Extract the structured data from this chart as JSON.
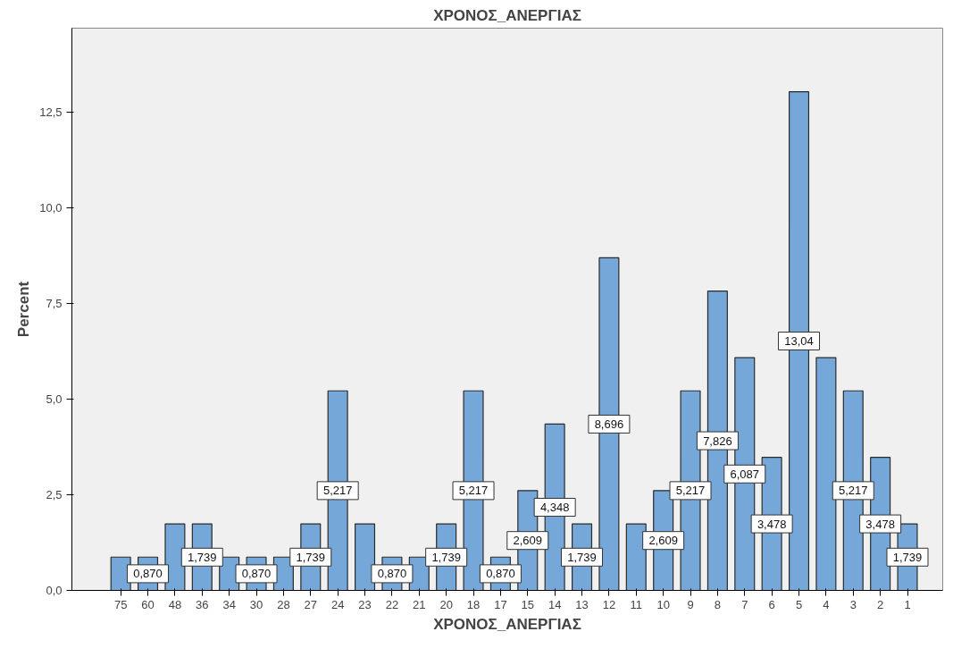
{
  "chart_data": {
    "type": "bar",
    "title": "ΧΡΟΝΟΣ_ΑΝΕΡΓΙΑΣ",
    "xlabel": "ΧΡΟΝΟΣ_ΑΝΕΡΓΙΑΣ",
    "ylabel": "Percent",
    "categories": [
      "75",
      "60",
      "48",
      "36",
      "34",
      "30",
      "28",
      "27",
      "24",
      "23",
      "22",
      "21",
      "20",
      "18",
      "17",
      "15",
      "14",
      "13",
      "12",
      "11",
      "10",
      "9",
      "8",
      "7",
      "6",
      "5",
      "4",
      "3",
      "2",
      "1"
    ],
    "values": [
      0.87,
      0.87,
      1.739,
      1.739,
      0.87,
      0.87,
      0.87,
      1.739,
      5.217,
      1.739,
      0.87,
      0.87,
      1.739,
      5.217,
      0.87,
      2.609,
      4.348,
      1.739,
      8.696,
      1.739,
      2.609,
      5.217,
      7.826,
      6.087,
      3.478,
      13.04,
      6.087,
      5.217,
      3.478,
      1.739
    ],
    "value_labels": [
      null,
      "0,870",
      null,
      "1,739",
      null,
      "0,870",
      null,
      "1,739",
      "5,217",
      null,
      "0,870",
      null,
      "1,739",
      "5,217",
      "0,870",
      "2,609",
      "4,348",
      "1,739",
      "8,696",
      null,
      "2,609",
      "5,217",
      "7,826",
      "6,087",
      "3,478",
      "13,04",
      null,
      "5,217",
      "3,478",
      "1,739"
    ],
    "color": "#75a7d8",
    "ylim": [
      0,
      14.7
    ],
    "yticks": [
      {
        "value": 0,
        "label": "0,0"
      },
      {
        "value": 2.5,
        "label": "2,5"
      },
      {
        "value": 5,
        "label": "5,0"
      },
      {
        "value": 7.5,
        "label": "7,5"
      },
      {
        "value": 10,
        "label": "10,0"
      },
      {
        "value": 12.5,
        "label": "12,5"
      }
    ],
    "grid": false
  }
}
